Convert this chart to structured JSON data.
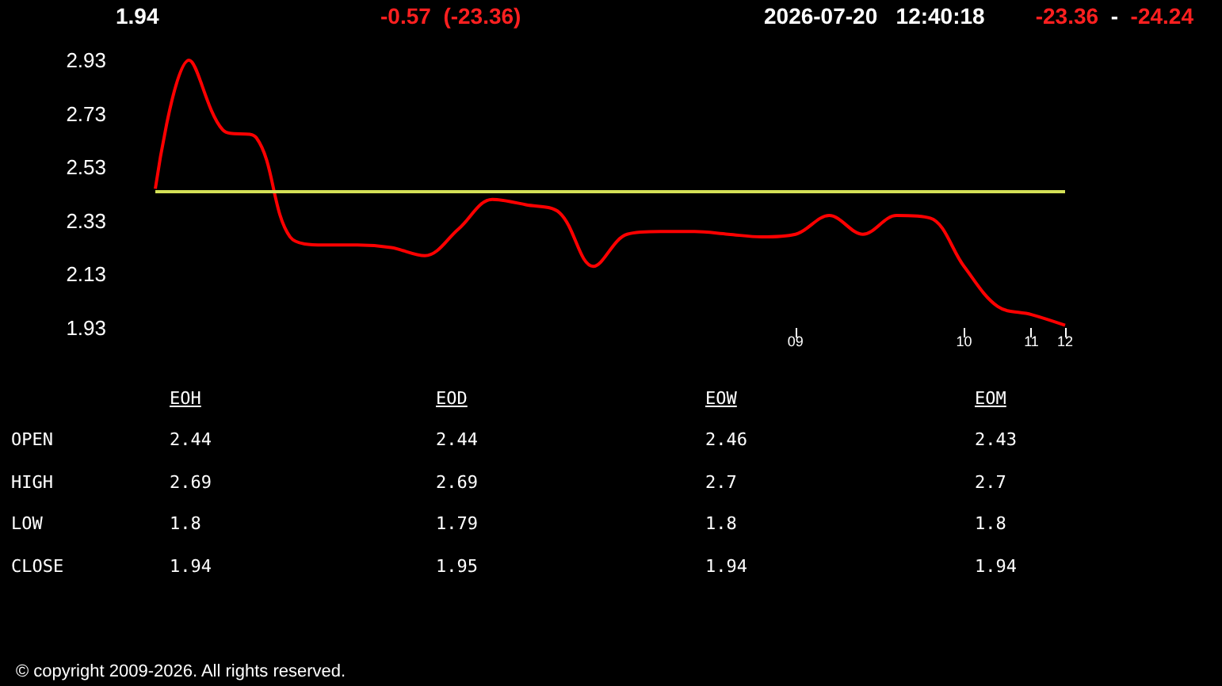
{
  "chart_data": [
    {
      "type": "line",
      "title": "1.94",
      "annotations": [
        "-0.57  (-23.36)",
        "2026-07-20   12:40:18",
        "-23.36",
        "-",
        "-24.24",
        "© copyright 2009-2026. All rights reserved."
      ],
      "categories": [
        null,
        null,
        null,
        null,
        null,
        null,
        null,
        null,
        null,
        null,
        null,
        null,
        null,
        null,
        null,
        null,
        null,
        null,
        null,
        "09",
        null,
        null,
        null,
        null,
        "10",
        null,
        "11",
        "12"
      ],
      "series": [
        {
          "color": "#ff0000",
          "values": [
            2.45,
            2.93,
            2.67,
            2.64,
            2.27,
            2.24,
            2.24,
            2.23,
            2.2,
            2.3,
            2.41,
            2.39,
            2.36,
            2.16,
            2.28,
            2.29,
            2.29,
            2.28,
            2.27,
            2.28,
            2.35,
            2.28,
            2.35,
            2.34,
            2.16,
            2.01,
            1.98,
            1.94
          ]
        }
      ],
      "ylim": [
        1.93,
        2.93
      ],
      "yticks": [
        1.93,
        2.13,
        2.33,
        2.53,
        2.73,
        2.93
      ],
      "ref_lines": [
        {
          "axis": "y",
          "value": 2.44,
          "color": "#d4e157"
        }
      ],
      "grid": false,
      "marker": "none",
      "line_style": "solid"
    },
    {
      "type": "other",
      "categories": [
        "EOH",
        "EOD",
        "EOW",
        "EOM"
      ],
      "y_categories": [
        "OPEN",
        "HIGH",
        "LOW",
        "CLOSE"
      ],
      "cell_labels": [
        [
          "2.44",
          "2.44",
          "2.46",
          "2.43"
        ],
        [
          "2.69",
          "2.69",
          "2.7",
          "2.7"
        ],
        [
          "1.8",
          "1.79",
          "1.8",
          "1.8"
        ],
        [
          "1.94",
          "1.95",
          "1.94",
          "1.94"
        ]
      ]
    }
  ]
}
